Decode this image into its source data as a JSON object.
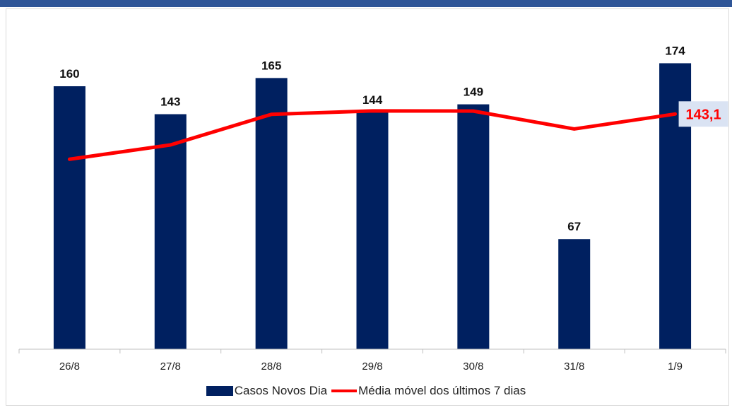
{
  "chart_data": {
    "type": "bar",
    "categories": [
      "26/8",
      "27/8",
      "28/8",
      "29/8",
      "30/8",
      "31/8",
      "1/9"
    ],
    "series": [
      {
        "name": "Casos Novos Dia",
        "type": "bar",
        "values": [
          160,
          143,
          165,
          144,
          149,
          67,
          174
        ],
        "color": "#002060"
      },
      {
        "name": "Média móvel dos últimos 7 dias",
        "type": "line",
        "values": [
          115.6,
          124.3,
          142.9,
          145.0,
          144.9,
          134.0,
          143.1
        ],
        "color": "#ff0000"
      }
    ],
    "bar_labels": [
      "160",
      "143",
      "165",
      "144",
      "149",
      "67",
      "174"
    ],
    "line_end_label": "143,1",
    "ylim": [
      0,
      230
    ],
    "grid": false,
    "legend_position": "bottom"
  }
}
